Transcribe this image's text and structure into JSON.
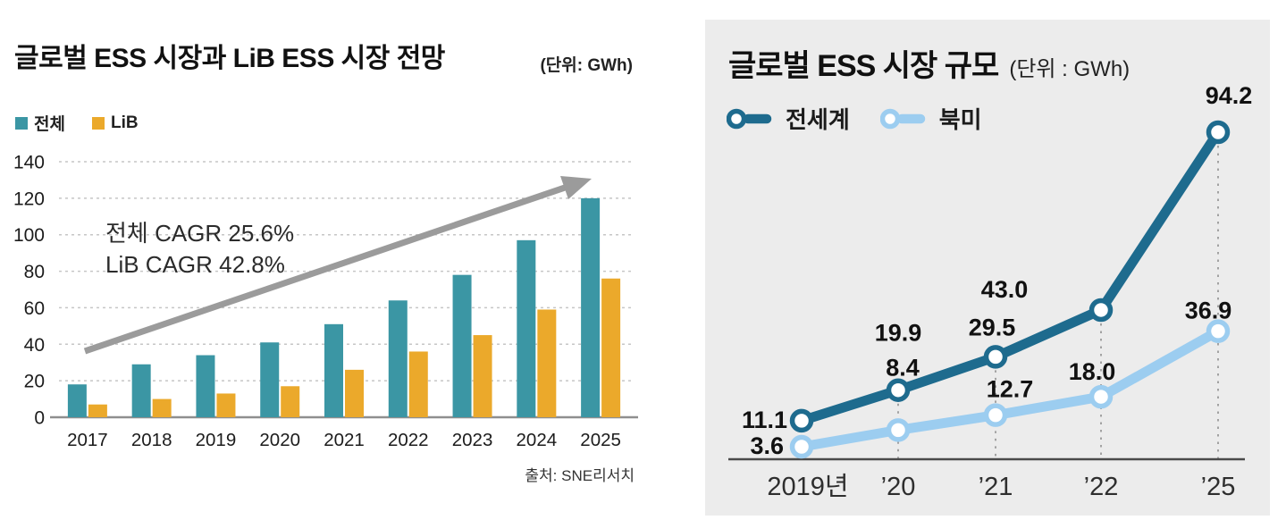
{
  "page": {
    "background": "#ffffff"
  },
  "chart_data": [
    {
      "panel": "left",
      "type": "bar",
      "title": "글로벌 ESS 시장과 LiB ESS 시장 전망",
      "unit_label": "(단위: GWh)",
      "source": "출처: SNE리서치",
      "categories": [
        "2017",
        "2018",
        "2019",
        "2020",
        "2021",
        "2022",
        "2023",
        "2024",
        "2025"
      ],
      "series": [
        {
          "name": "전체",
          "color": "#3b96a4",
          "values": [
            18,
            29,
            34,
            41,
            51,
            64,
            78,
            97,
            120
          ]
        },
        {
          "name": "LiB",
          "color": "#eba92b",
          "values": [
            7,
            10,
            13,
            17,
            26,
            36,
            45,
            59,
            76
          ]
        }
      ],
      "xlabel": "",
      "ylabel": "",
      "ylim": [
        0,
        140
      ],
      "yticks": [
        0,
        20,
        40,
        60,
        80,
        100,
        120,
        140
      ],
      "grid": true,
      "legend_position": "top-left",
      "annotations": [
        {
          "text": "전체 CAGR 25.6%"
        },
        {
          "text": "LiB CAGR 42.8%"
        }
      ],
      "trend_arrow": {
        "color": "#9b9b9b"
      },
      "colors": {
        "grid": "#c6c6c6",
        "axis": "#8f8f8f",
        "text": "#1c1c1c"
      }
    },
    {
      "panel": "right",
      "type": "line",
      "title": "글로벌 ESS 시장 규모",
      "unit_label": "(단위 : GWh)",
      "background": "#ececec",
      "categories": [
        "2019년",
        "’20",
        "’21",
        "’22",
        "’25"
      ],
      "series": [
        {
          "name": "전세계",
          "color": "#1e6b8e",
          "values": [
            11.1,
            19.9,
            29.5,
            43.0,
            94.2
          ],
          "labels": [
            "11.1",
            "19.9",
            "29.5",
            "43.0",
            "94.2"
          ]
        },
        {
          "name": "북미",
          "color": "#9ccdf0",
          "values": [
            3.6,
            8.4,
            12.7,
            18.0,
            36.9
          ],
          "labels": [
            "3.6",
            "8.4",
            "12.7",
            "18.0",
            "36.9"
          ]
        }
      ],
      "ylim": [
        0,
        100
      ],
      "grid": false,
      "data_labels": true,
      "legend_position": "top-left",
      "colors": {
        "axis": "#4a4a4a",
        "guide": "#909090",
        "marker_fill": "#ffffff",
        "text": "#111111"
      }
    }
  ]
}
